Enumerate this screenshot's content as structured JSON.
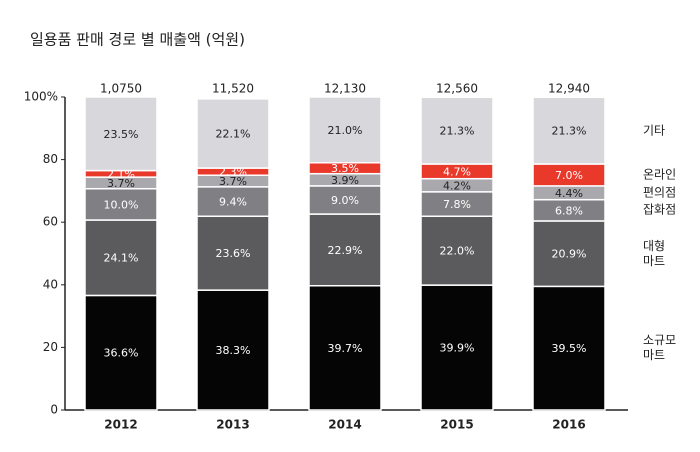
{
  "chart_data": {
    "type": "stacked_bar_100",
    "title": "일용품 판매 경로 별 매출액 (억원)",
    "categories": [
      "2012",
      "2013",
      "2014",
      "2015",
      "2016"
    ],
    "totals": [
      "1,0750",
      "11,520",
      "12,130",
      "12,560",
      "12,940"
    ],
    "ylim": [
      0,
      100
    ],
    "yticks": [
      0,
      20,
      40,
      60,
      80,
      {
        "value": 100,
        "label": "100%"
      }
    ],
    "series": [
      {
        "name": "소규모\n마트",
        "color": "#050505",
        "values": [
          36.6,
          38.3,
          39.7,
          39.9,
          39.5
        ],
        "value_labels": [
          "36.6%",
          "38.3%",
          "39.7%",
          "39.9%",
          "39.5%"
        ]
      },
      {
        "name": "대형\n마트",
        "color": "#5b5a5d",
        "values": [
          24.1,
          23.6,
          22.9,
          22.0,
          20.9
        ],
        "value_labels": [
          "24.1%",
          "23.6%",
          "22.9%",
          "22.0%",
          "20.9%"
        ]
      },
      {
        "name": "잡화점",
        "color": "#807f83",
        "values": [
          10.0,
          9.4,
          9.0,
          7.8,
          6.8
        ],
        "value_labels": [
          "10.0%",
          "9.4%",
          "9.0%",
          "7.8%",
          "6.8%"
        ]
      },
      {
        "name": "편의점",
        "color": "#a9a8ac",
        "values": [
          3.7,
          3.7,
          3.9,
          4.2,
          4.4
        ],
        "value_labels": [
          "3.7%",
          "3.7%",
          "3.9%",
          "4.2%",
          "4.4%"
        ]
      },
      {
        "name": "온라인",
        "color": "#e8392b",
        "values": [
          2.1,
          2.3,
          3.5,
          4.7,
          7.0
        ],
        "value_labels": [
          "2.1%",
          "2.3%",
          "3.5%",
          "4.7%",
          "7.0%"
        ]
      },
      {
        "name": "기타",
        "color": "#d8d7db",
        "values": [
          23.5,
          22.1,
          21.0,
          21.3,
          21.3
        ],
        "value_labels": [
          "23.5%",
          "22.1%",
          "21.0%",
          "21.3%",
          "21.3%"
        ]
      }
    ]
  }
}
